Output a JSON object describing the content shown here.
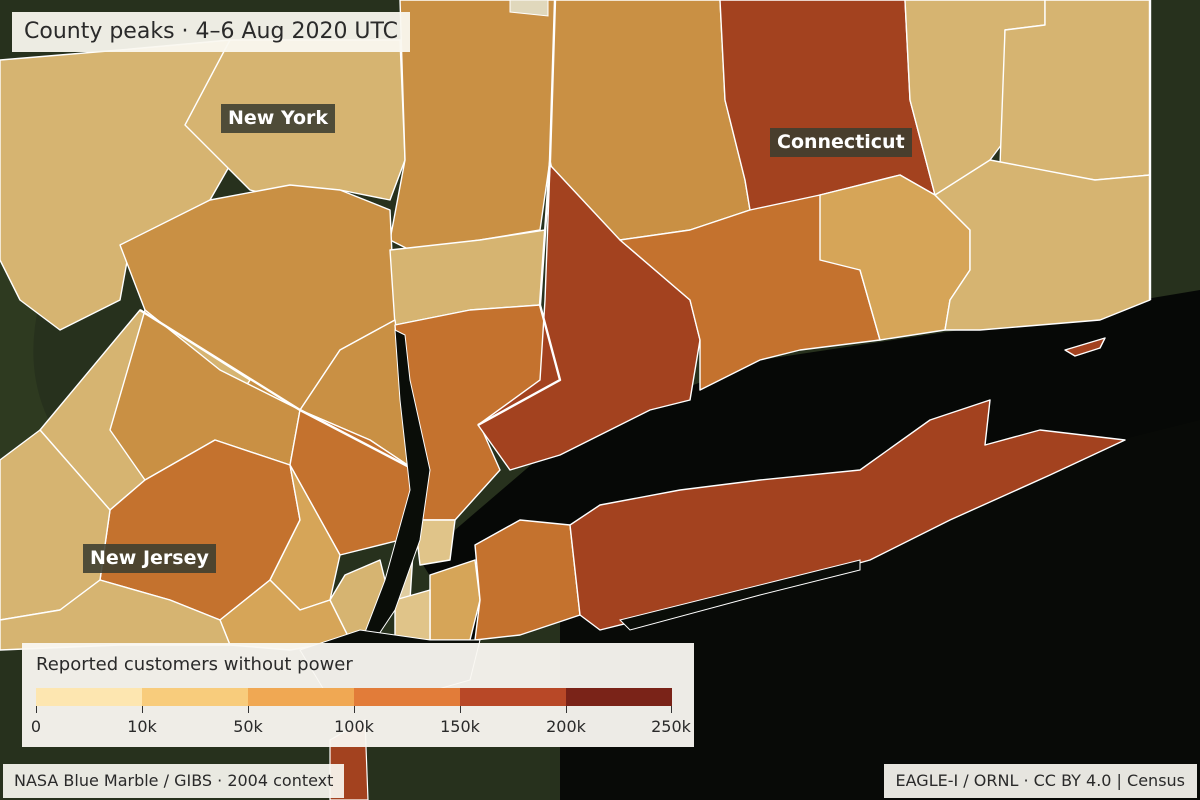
{
  "title": "County peaks · 4–6 Aug 2020 UTC",
  "state_labels": {
    "new_york": "New York",
    "connecticut": "Connecticut",
    "new_jersey": "New Jersey"
  },
  "legend": {
    "title": "Reported customers without power",
    "ticks": [
      "0",
      "10k",
      "50k",
      "100k",
      "150k",
      "200k",
      "250k"
    ],
    "colors": [
      "#fde6b0",
      "#f8cc7c",
      "#f0a853",
      "#e27c39",
      "#b84827",
      "#7a2318"
    ]
  },
  "attribution": {
    "left": "NASA Blue Marble / GIBS · 2004 context",
    "right": "EAGLE-I / ORNL · CC BY 4.0  |  Census"
  },
  "palette": {
    "land_dark": "#27311d",
    "water": "#0a0d08",
    "border": "#ffffff",
    "county_light": "#d6b471",
    "county_mid": "#c99044",
    "county_orange": "#c4722e",
    "county_dark": "#a3421f"
  }
}
